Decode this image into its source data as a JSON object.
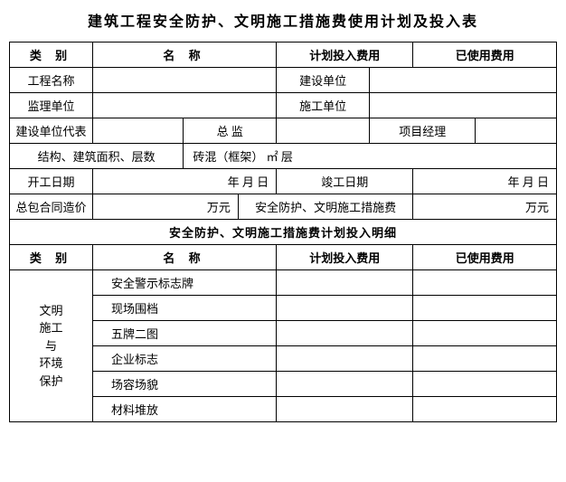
{
  "title": "建筑工程安全防护、文明施工措施费使用计划及投入表",
  "headers": {
    "category": "类  别",
    "name": "名  称",
    "planned_cost": "计划投入费用",
    "used_cost": "已使用费用"
  },
  "rows": {
    "project_name_label": "工程名称",
    "construction_unit_label": "建设单位",
    "supervision_unit_label": "监理单位",
    "contractor_unit_label": "施工单位",
    "owner_rep_label": "建设单位代表",
    "chief_supervisor_label": "总  监",
    "project_manager_label": "项目经理",
    "structure_label": "结构、建筑面积、层数",
    "structure_value": "砖混（框架）        ㎡        层",
    "start_date_label": "开工日期",
    "date_format": "年    月    日",
    "completion_date_label": "竣工日期",
    "total_cost_label": "总包合同造价",
    "wan_yuan": "万元",
    "safety_cost_label": "安全防护、文明施工措施费"
  },
  "subheader": "安全防护、文明施工措施费计划投入明细",
  "detail_category": "文明<br>施工<br>与<br>环境<br>保护",
  "detail_items": [
    "安全警示标志牌",
    "现场围档",
    "五牌二图",
    "企业标志",
    "场容场貌",
    "材料堆放"
  ]
}
